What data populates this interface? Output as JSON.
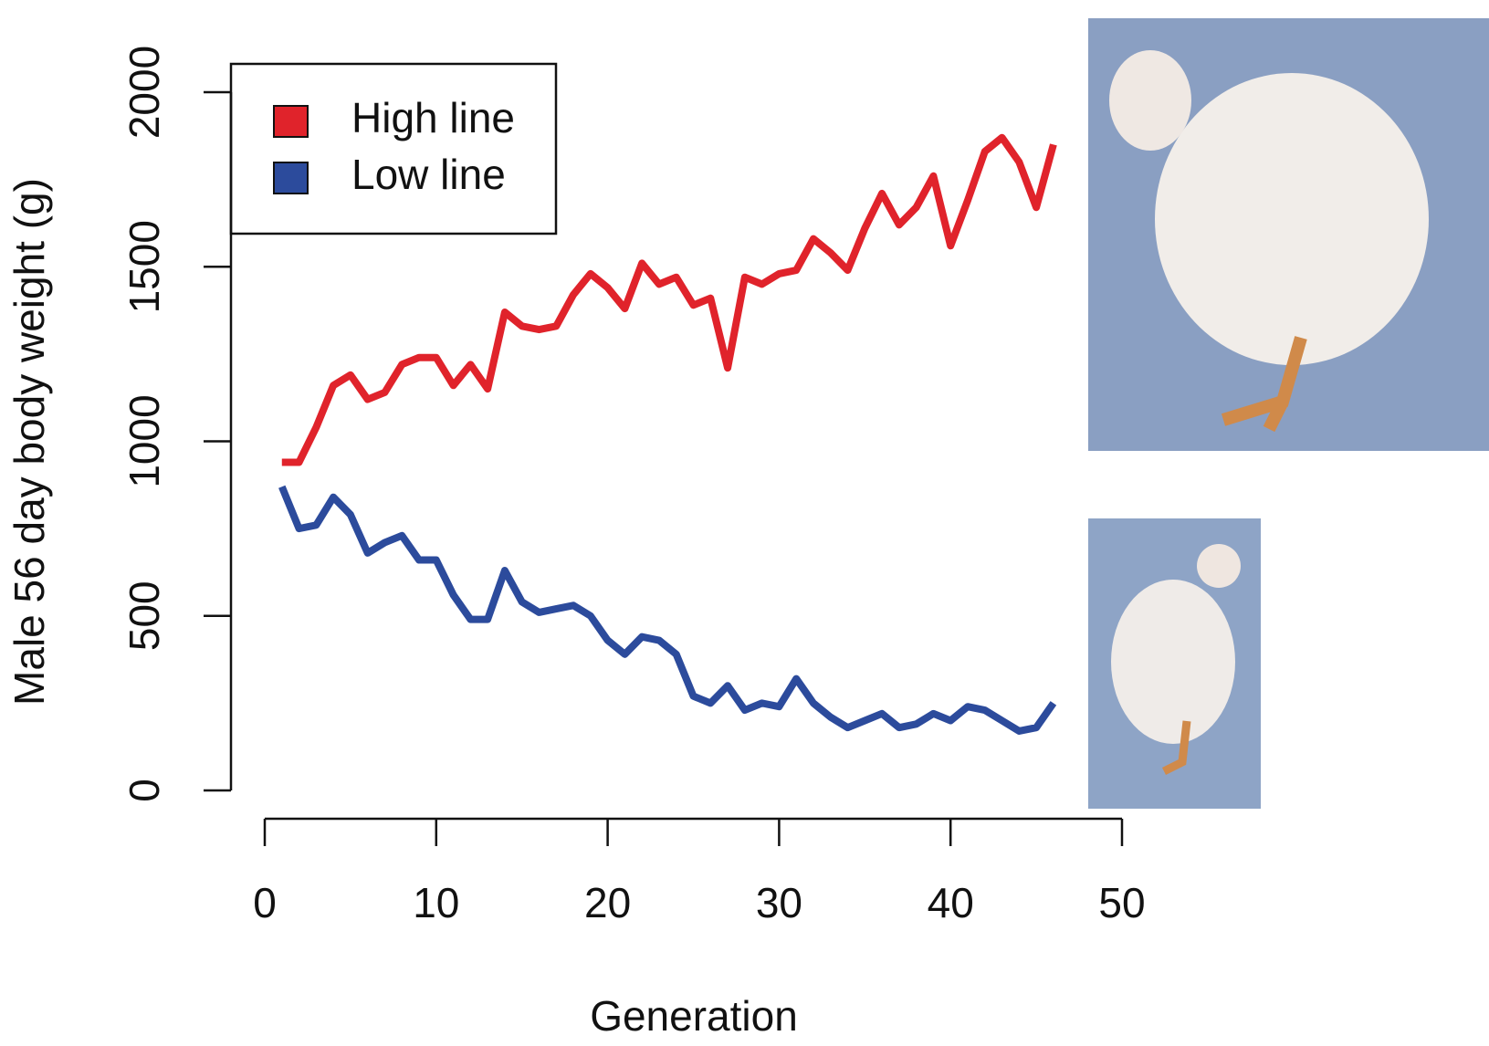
{
  "chart_data": {
    "type": "line",
    "xlabel": "Generation",
    "ylabel": "Male 56 day body weight (g)",
    "x": [
      1,
      2,
      3,
      4,
      5,
      6,
      7,
      8,
      9,
      10,
      11,
      12,
      13,
      14,
      15,
      16,
      17,
      18,
      19,
      20,
      21,
      22,
      23,
      24,
      25,
      26,
      27,
      28,
      29,
      30,
      31,
      32,
      33,
      34,
      35,
      36,
      37,
      38,
      39,
      40,
      41,
      42,
      43,
      44,
      45,
      46
    ],
    "series": [
      {
        "name": "High line",
        "color": "#e0232b",
        "values": [
          940,
          940,
          1040,
          1160,
          1190,
          1120,
          1140,
          1220,
          1240,
          1240,
          1160,
          1220,
          1150,
          1370,
          1330,
          1320,
          1330,
          1420,
          1480,
          1440,
          1380,
          1510,
          1450,
          1470,
          1390,
          1410,
          1210,
          1470,
          1450,
          1480,
          1490,
          1580,
          1540,
          1490,
          1610,
          1710,
          1620,
          1670,
          1760,
          1560,
          1690,
          1830,
          1870,
          1800,
          1670,
          1850
        ]
      },
      {
        "name": "Low line",
        "color": "#2c4b9c",
        "values": [
          870,
          750,
          760,
          840,
          790,
          680,
          710,
          730,
          660,
          660,
          560,
          490,
          490,
          630,
          540,
          510,
          520,
          530,
          500,
          430,
          390,
          440,
          430,
          390,
          270,
          250,
          300,
          230,
          250,
          240,
          320,
          250,
          210,
          180,
          200,
          220,
          180,
          190,
          220,
          200,
          240,
          230,
          200,
          170,
          180,
          250
        ]
      }
    ],
    "xlim": [
      0,
      50
    ],
    "xticks": [
      0,
      10,
      20,
      30,
      40,
      50
    ],
    "ylim": [
      0,
      2000
    ],
    "yticks": [
      0,
      500,
      1000,
      1500,
      2000
    ],
    "legend": "top-left"
  }
}
